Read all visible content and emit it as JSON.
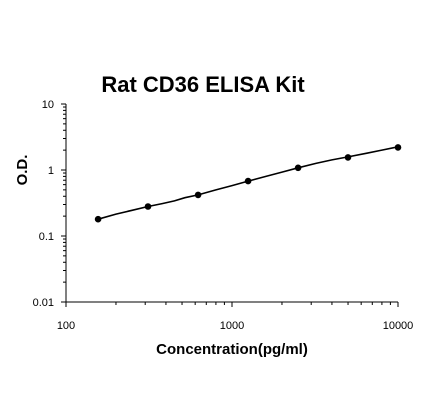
{
  "chart_data": {
    "type": "line",
    "title": "Rat CD36 ELISA Kit",
    "xlabel": "Concentration(pg/ml)",
    "ylabel": "O.D.",
    "x_scale": "log",
    "y_scale": "log",
    "xlim": [
      100,
      10000
    ],
    "ylim": [
      0.01,
      10
    ],
    "x_ticks": [
      "100",
      "1000",
      "10000"
    ],
    "y_ticks": [
      "0.01",
      "0.1",
      "1",
      "10"
    ],
    "grid": false,
    "legend": "none",
    "series": [
      {
        "x": [
          156,
          312,
          625,
          1250,
          2500,
          5000,
          10000
        ],
        "y": [
          0.18,
          0.28,
          0.42,
          0.68,
          1.08,
          1.55,
          2.2
        ]
      }
    ],
    "curve": {
      "x": [
        156,
        200,
        250,
        312,
        380,
        450,
        520,
        625,
        800,
        1000,
        1250,
        1600,
        2000,
        2500,
        3200,
        4000,
        5000,
        6500,
        8000,
        10000
      ],
      "y": [
        0.18,
        0.215,
        0.245,
        0.28,
        0.31,
        0.34,
        0.38,
        0.42,
        0.5,
        0.58,
        0.68,
        0.8,
        0.93,
        1.08,
        1.26,
        1.42,
        1.58,
        1.8,
        2.0,
        2.25
      ]
    },
    "colors": {
      "line": "#000000",
      "marker": "#000000",
      "axis": "#000000"
    }
  }
}
